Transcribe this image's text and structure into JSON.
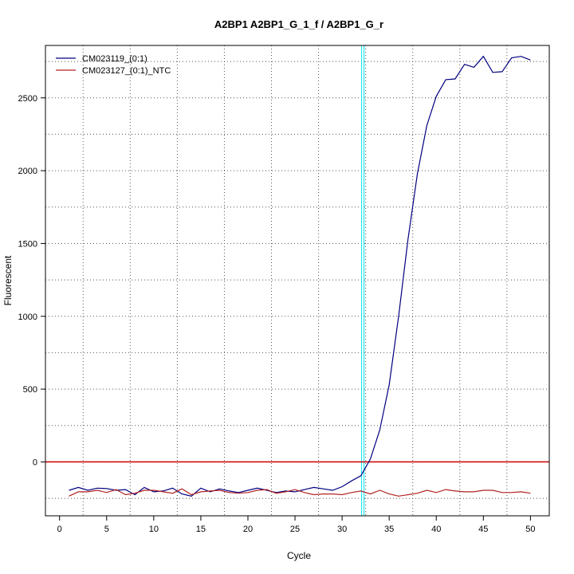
{
  "chart_data": {
    "type": "line",
    "title": "A2BP1  A2BP1_G_1_f / A2BP1_G_r",
    "xlabel": "Cycle",
    "ylabel": "Fluorescent",
    "xlim": [
      -1.5,
      52
    ],
    "ylim": [
      -370,
      2860
    ],
    "xticks": [
      0,
      5,
      10,
      15,
      20,
      25,
      30,
      35,
      40,
      45,
      50
    ],
    "yticks": [
      0,
      500,
      1000,
      1500,
      2000,
      2500
    ],
    "grid": true,
    "legend": "top-left",
    "threshold": {
      "y": 0,
      "color": "#cc0000"
    },
    "cycle_threshold": {
      "x": 32.2,
      "color": "#00e5ee"
    },
    "x": [
      1,
      2,
      3,
      4,
      5,
      6,
      7,
      8,
      9,
      10,
      11,
      12,
      13,
      14,
      15,
      16,
      17,
      18,
      19,
      20,
      21,
      22,
      23,
      24,
      25,
      26,
      27,
      28,
      29,
      30,
      31,
      32,
      33,
      34,
      35,
      36,
      37,
      38,
      39,
      40,
      41,
      42,
      43,
      44,
      45,
      46,
      47,
      48,
      49,
      50
    ],
    "series": [
      {
        "name": "CM023119_(0:1)",
        "color": "#000080",
        "values": [
          -195,
          -175,
          -195,
          -180,
          -183,
          -195,
          -190,
          -225,
          -175,
          -205,
          -200,
          -180,
          -220,
          -235,
          -180,
          -205,
          -185,
          -200,
          -210,
          -195,
          -180,
          -195,
          -210,
          -200,
          -205,
          -190,
          -175,
          -185,
          -195,
          -170,
          -130,
          -95,
          20,
          220,
          530,
          1000,
          1530,
          1980,
          2310,
          2510,
          2625,
          2630,
          2730,
          2710,
          2785,
          2675,
          2680,
          2775,
          2785,
          2760
        ]
      },
      {
        "name": "CM023127_(0:1)_NTC",
        "color": "#b22222",
        "values": [
          -235,
          -205,
          -205,
          -195,
          -210,
          -190,
          -225,
          -215,
          -195,
          -195,
          -205,
          -215,
          -185,
          -225,
          -205,
          -200,
          -195,
          -210,
          -215,
          -210,
          -195,
          -190,
          -215,
          -205,
          -190,
          -210,
          -225,
          -220,
          -220,
          -225,
          -210,
          -200,
          -220,
          -195,
          -220,
          -235,
          -225,
          -215,
          -195,
          -210,
          -190,
          -200,
          -205,
          -205,
          -195,
          -195,
          -210,
          -210,
          -205,
          -215
        ]
      }
    ]
  }
}
